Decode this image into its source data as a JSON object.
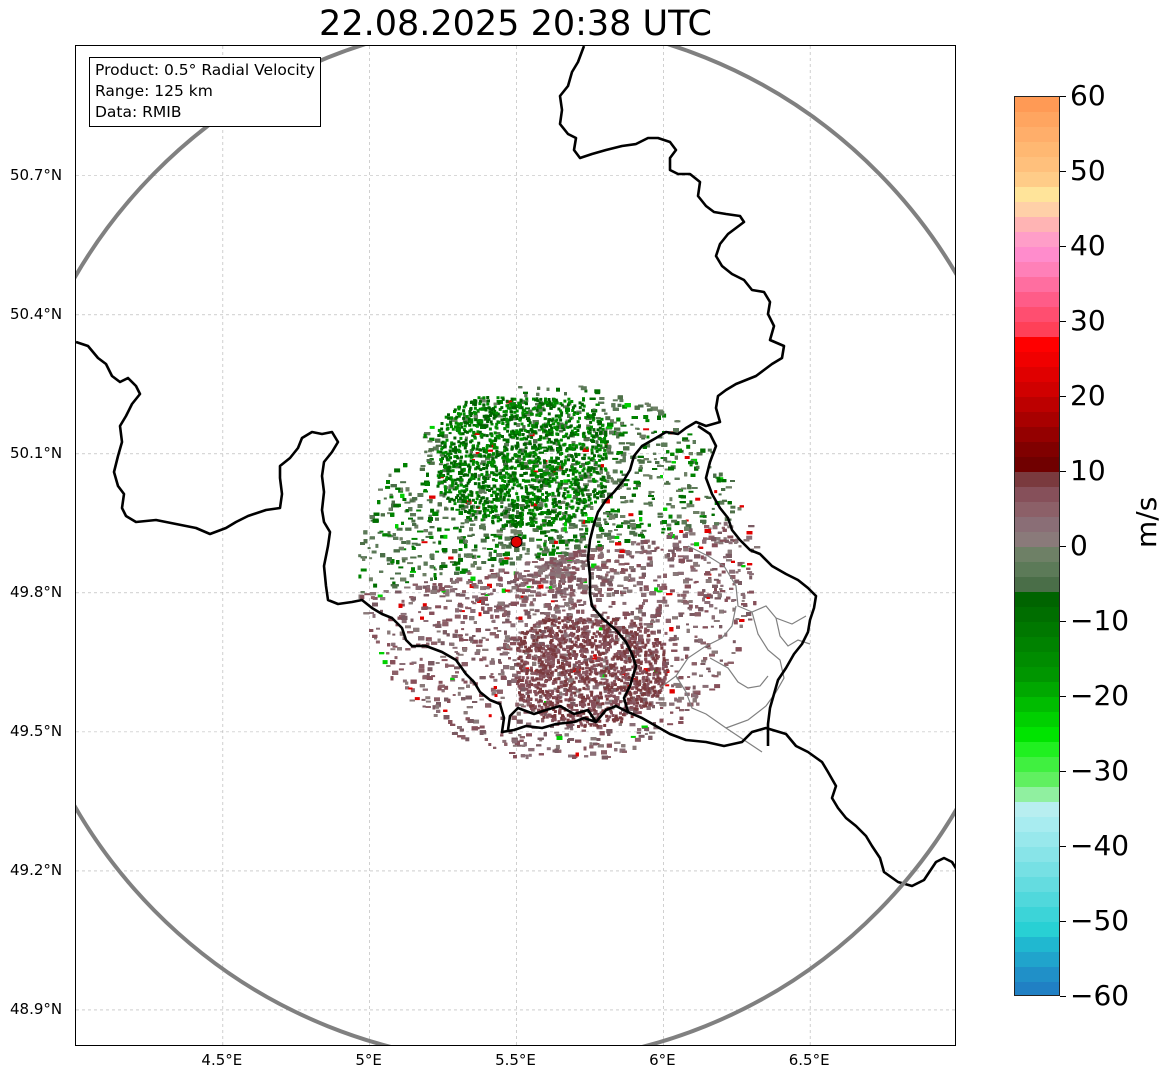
{
  "title": "22.08.2025 20:38 UTC",
  "info": {
    "product": "Product: 0.5° Radial Velocity",
    "range": "Range: 125 km",
    "source": "Data: RMIB"
  },
  "map": {
    "lon_range": [
      4.0,
      7.0
    ],
    "lat_range": [
      48.82,
      50.98
    ],
    "lat_ticks": [
      {
        "value": 48.9,
        "label": "48.9°N"
      },
      {
        "value": 49.2,
        "label": "49.2°N"
      },
      {
        "value": 49.5,
        "label": "49.5°N"
      },
      {
        "value": 49.8,
        "label": "49.8°N"
      },
      {
        "value": 50.1,
        "label": "50.1°N"
      },
      {
        "value": 50.4,
        "label": "50.4°N"
      },
      {
        "value": 50.7,
        "label": "50.7°N"
      }
    ],
    "lon_ticks": [
      {
        "value": 4.5,
        "label": "4.5°E"
      },
      {
        "value": 5.0,
        "label": "5°E"
      },
      {
        "value": 5.5,
        "label": "5.5°E"
      },
      {
        "value": 6.0,
        "label": "6°E"
      },
      {
        "value": 6.5,
        "label": "6.5°E"
      }
    ],
    "radar_site": {
      "lon": 5.5,
      "lat": 49.91
    },
    "range_km": 125,
    "colors": {
      "range_ring": "#808080",
      "border": "#000000",
      "admin_border": "#808080",
      "site_marker": "#e00000",
      "grid": "#b0b0b0"
    }
  },
  "colorbar": {
    "unit": "m/s",
    "min": -60,
    "max": 60,
    "ticks": [
      {
        "value": 60,
        "label": "60"
      },
      {
        "value": 50,
        "label": "50"
      },
      {
        "value": 40,
        "label": "40"
      },
      {
        "value": 30,
        "label": "30"
      },
      {
        "value": 20,
        "label": "20"
      },
      {
        "value": 10,
        "label": "10"
      },
      {
        "value": 0,
        "label": "0"
      },
      {
        "value": -10,
        "label": "−10"
      },
      {
        "value": -20,
        "label": "−20"
      },
      {
        "value": -30,
        "label": "−30"
      },
      {
        "value": -40,
        "label": "−40"
      },
      {
        "value": -50,
        "label": "−50"
      },
      {
        "value": -60,
        "label": "−60"
      }
    ],
    "bands": [
      {
        "from": 58,
        "to": 60,
        "color": "#ff9a55"
      },
      {
        "from": 56,
        "to": 58,
        "color": "#ffa560"
      },
      {
        "from": 54,
        "to": 56,
        "color": "#ffae6a"
      },
      {
        "from": 52,
        "to": 54,
        "color": "#ffb872"
      },
      {
        "from": 50,
        "to": 52,
        "color": "#ffc07c"
      },
      {
        "from": 48,
        "to": 50,
        "color": "#ffcc88"
      },
      {
        "from": 46,
        "to": 48,
        "color": "#ffe49a"
      },
      {
        "from": 44,
        "to": 46,
        "color": "#ffd0a8"
      },
      {
        "from": 42,
        "to": 44,
        "color": "#ffb4b4"
      },
      {
        "from": 40,
        "to": 42,
        "color": "#ff9ec8"
      },
      {
        "from": 38,
        "to": 40,
        "color": "#ff8ccc"
      },
      {
        "from": 36,
        "to": 38,
        "color": "#ff80b8"
      },
      {
        "from": 34,
        "to": 36,
        "color": "#ff6ea0"
      },
      {
        "from": 32,
        "to": 34,
        "color": "#ff5c88"
      },
      {
        "from": 30,
        "to": 32,
        "color": "#ff4e70"
      },
      {
        "from": 28,
        "to": 30,
        "color": "#ff4058"
      },
      {
        "from": 26,
        "to": 28,
        "color": "#ff0000"
      },
      {
        "from": 24,
        "to": 26,
        "color": "#f00000"
      },
      {
        "from": 22,
        "to": 24,
        "color": "#e00000"
      },
      {
        "from": 20,
        "to": 22,
        "color": "#d00000"
      },
      {
        "from": 18,
        "to": 20,
        "color": "#bc0000"
      },
      {
        "from": 16,
        "to": 18,
        "color": "#a80000"
      },
      {
        "from": 14,
        "to": 16,
        "color": "#940000"
      },
      {
        "from": 12,
        "to": 14,
        "color": "#800000"
      },
      {
        "from": 10,
        "to": 12,
        "color": "#700000"
      },
      {
        "from": 8,
        "to": 10,
        "color": "#7a3a3e"
      },
      {
        "from": 6,
        "to": 8,
        "color": "#86505a"
      },
      {
        "from": 4,
        "to": 6,
        "color": "#8c6068"
      },
      {
        "from": 2,
        "to": 4,
        "color": "#8a6e76"
      },
      {
        "from": 0,
        "to": 2,
        "color": "#8a7a7a"
      },
      {
        "from": -2,
        "to": 0,
        "color": "#6e8066"
      },
      {
        "from": -4,
        "to": -2,
        "color": "#5c7a58"
      },
      {
        "from": -6,
        "to": -4,
        "color": "#4a6e48"
      },
      {
        "from": -8,
        "to": -6,
        "color": "#006400"
      },
      {
        "from": -10,
        "to": -8,
        "color": "#006e00"
      },
      {
        "from": -12,
        "to": -10,
        "color": "#007800"
      },
      {
        "from": -14,
        "to": -12,
        "color": "#008200"
      },
      {
        "from": -16,
        "to": -14,
        "color": "#008c00"
      },
      {
        "from": -18,
        "to": -16,
        "color": "#009600"
      },
      {
        "from": -20,
        "to": -18,
        "color": "#00a800"
      },
      {
        "from": -22,
        "to": -20,
        "color": "#00bc00"
      },
      {
        "from": -24,
        "to": -22,
        "color": "#00d000"
      },
      {
        "from": -26,
        "to": -24,
        "color": "#00e400"
      },
      {
        "from": -28,
        "to": -26,
        "color": "#20f020"
      },
      {
        "from": -30,
        "to": -28,
        "color": "#40f040"
      },
      {
        "from": -32,
        "to": -30,
        "color": "#60f060"
      },
      {
        "from": -34,
        "to": -32,
        "color": "#90f0a0"
      },
      {
        "from": -36,
        "to": -34,
        "color": "#b8eef0"
      },
      {
        "from": -38,
        "to": -36,
        "color": "#a8ecf0"
      },
      {
        "from": -40,
        "to": -38,
        "color": "#98e8ec"
      },
      {
        "from": -42,
        "to": -40,
        "color": "#88e4e8"
      },
      {
        "from": -44,
        "to": -42,
        "color": "#76e0e4"
      },
      {
        "from": -46,
        "to": -44,
        "color": "#64dce0"
      },
      {
        "from": -48,
        "to": -46,
        "color": "#50d8dc"
      },
      {
        "from": -50,
        "to": -48,
        "color": "#3cd4d8"
      },
      {
        "from": -52,
        "to": -50,
        "color": "#28d0d4"
      },
      {
        "from": -54,
        "to": -52,
        "color": "#20b8d0"
      },
      {
        "from": -56,
        "to": -54,
        "color": "#20a4cc"
      },
      {
        "from": -58,
        "to": -56,
        "color": "#2090c8"
      },
      {
        "from": -60,
        "to": -58,
        "color": "#2080c4"
      }
    ]
  }
}
